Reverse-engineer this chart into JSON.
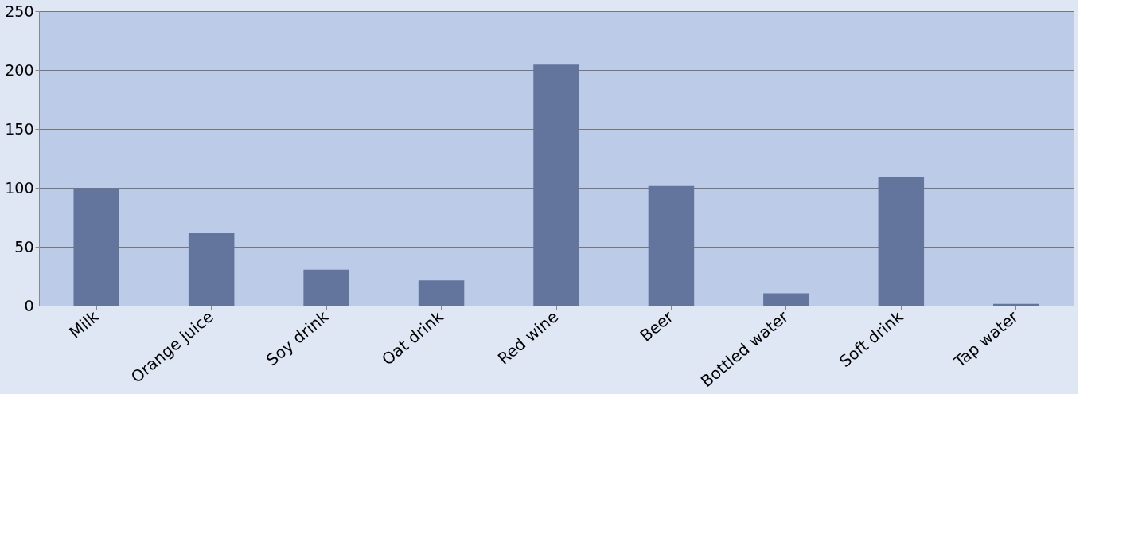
{
  "chart_data": {
    "type": "bar",
    "categories": [
      "Milk",
      "Orange juice",
      "Soy drink",
      "Oat drink",
      "Red wine",
      "Beer",
      "Bottled water",
      "Soft drink",
      "Tap water"
    ],
    "series": [
      {
        "color": "#63759c",
        "values": [
          99,
          61,
          30,
          21,
          204,
          101,
          10,
          109,
          1
        ]
      }
    ],
    "ylim": [
      0,
      250
    ],
    "yticks": [
      0,
      50,
      100,
      150,
      200,
      250
    ],
    "grid": "y",
    "legend": false
  }
}
